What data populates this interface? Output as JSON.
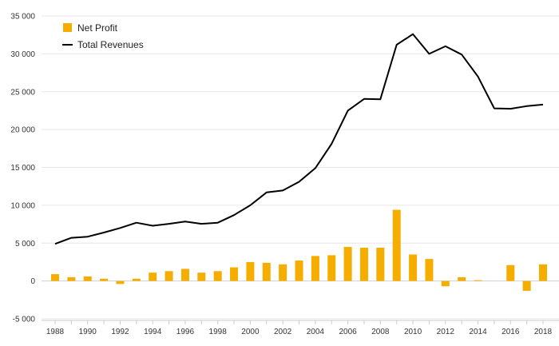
{
  "chart_data": {
    "type": "bar+line",
    "title": "",
    "xlabel": "",
    "ylabel": "",
    "ylim": [
      -5000,
      35000
    ],
    "yticks": [
      -5000,
      0,
      5000,
      10000,
      15000,
      20000,
      25000,
      30000,
      35000
    ],
    "ytick_labels": [
      "-5 000",
      "0",
      "5 000",
      "10 000",
      "15 000",
      "20 000",
      "25 000",
      "30 000",
      "35 000"
    ],
    "xtick_labels": [
      "1988",
      "1990",
      "1992",
      "1994",
      "1996",
      "1998",
      "2000",
      "2002",
      "2004",
      "2006",
      "2008",
      "2010",
      "2012",
      "2014",
      "2016",
      "2018"
    ],
    "grid": true,
    "legend_position": "top-left",
    "years": [
      1988,
      1989,
      1990,
      1991,
      1992,
      1993,
      1994,
      1995,
      1996,
      1997,
      1998,
      1999,
      2000,
      2001,
      2002,
      2003,
      2004,
      2005,
      2006,
      2007,
      2008,
      2009,
      2010,
      2011,
      2012,
      2013,
      2014,
      2015,
      2016,
      2017,
      2018
    ],
    "series": [
      {
        "name": "Net Profit",
        "type": "bar",
        "color": "#f5ad00",
        "values": [
          900,
          500,
          600,
          300,
          -400,
          300,
          1100,
          1300,
          1600,
          1100,
          1300,
          1800,
          2500,
          2400,
          2200,
          2700,
          3300,
          3400,
          4500,
          4400,
          4400,
          9400,
          3500,
          2900,
          -700,
          500,
          100,
          0,
          2100,
          -1300,
          2200
        ]
      },
      {
        "name": "Total Revenues",
        "type": "line",
        "color": "#000000",
        "values": [
          4900,
          5700,
          5850,
          6400,
          7000,
          7700,
          7300,
          7550,
          7850,
          7550,
          7700,
          8700,
          10000,
          11700,
          11950,
          13100,
          14900,
          18100,
          22500,
          24050,
          24000,
          31200,
          32600,
          30000,
          31000,
          29900,
          27000,
          22800,
          22750,
          23100,
          23300
        ]
      }
    ]
  }
}
